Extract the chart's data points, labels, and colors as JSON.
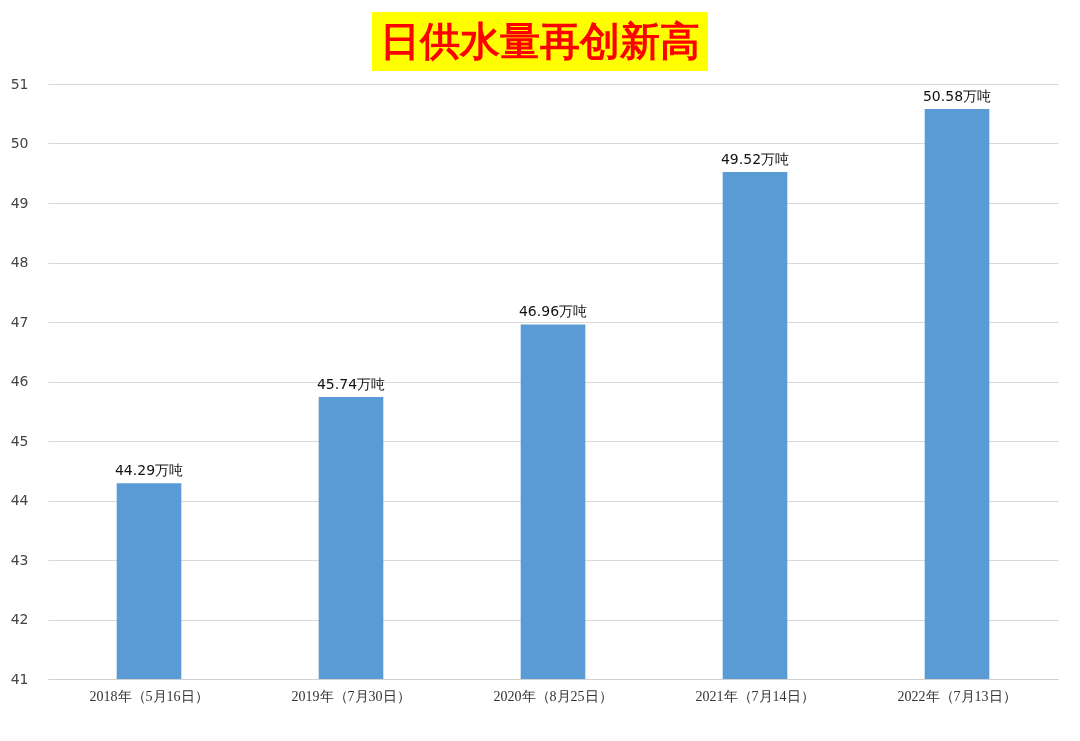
{
  "chart_data": {
    "type": "bar",
    "title": "日供水量再创新高",
    "categories": [
      "2018年（5月16日）",
      "2019年（7月30日）",
      "2020年（8月25日）",
      "2021年（7月14日）",
      "2022年（7月13日）"
    ],
    "values": [
      44.29,
      45.74,
      46.96,
      49.52,
      50.58
    ],
    "value_labels": [
      "44.29万吨",
      "45.74万吨",
      "46.96万吨",
      "49.52万吨",
      "50.58万吨"
    ],
    "color": "#5b9bd5",
    "ylim": [
      41,
      51
    ],
    "yticks": [
      41,
      42,
      43,
      44,
      45,
      46,
      47,
      48,
      49,
      50,
      51
    ],
    "grid": "y"
  }
}
